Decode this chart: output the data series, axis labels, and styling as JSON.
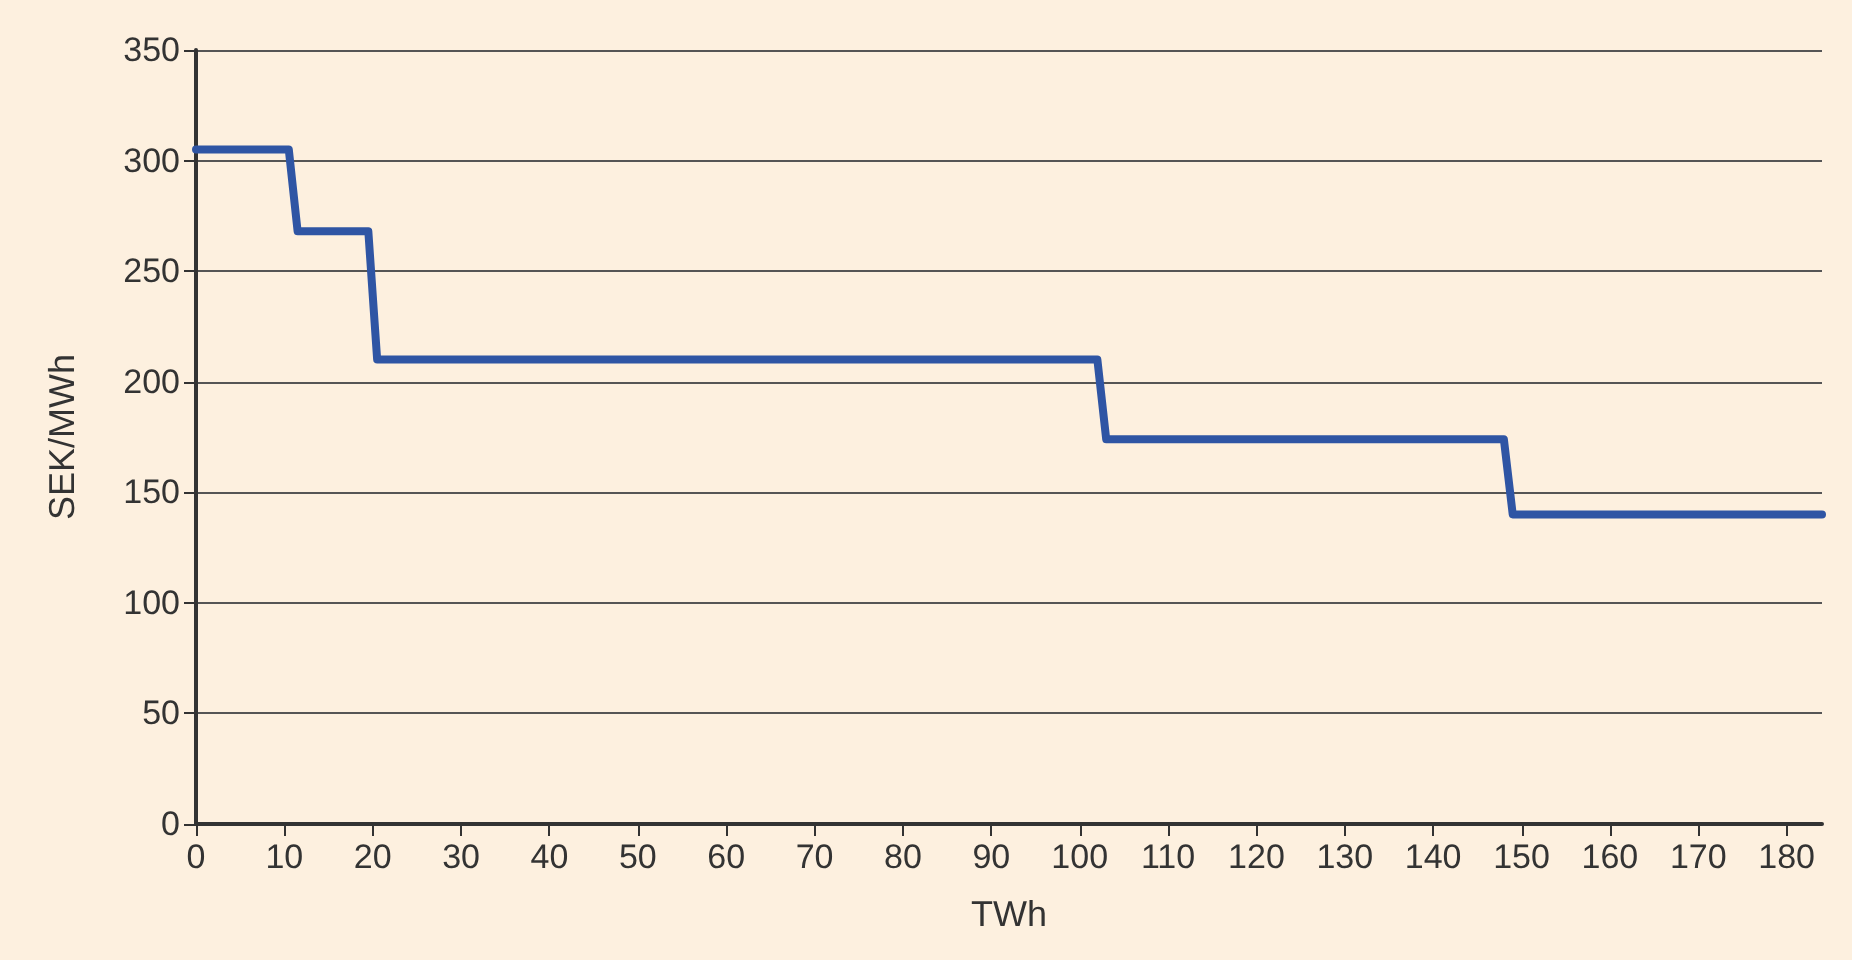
{
  "chart_data": {
    "type": "line",
    "xlabel": "TWh",
    "ylabel": "SEK/MWh",
    "series": [
      {
        "color": "#2f55a4",
        "x": [
          0,
          10.5,
          11.5,
          19.5,
          20.5,
          102,
          103,
          148,
          149,
          184
        ],
        "values": [
          305,
          305,
          268,
          268,
          210,
          210,
          174,
          174,
          140,
          140
        ]
      }
    ],
    "xlim": [
      0,
      184
    ],
    "xticks": [
      0,
      10,
      20,
      30,
      40,
      50,
      60,
      70,
      80,
      90,
      100,
      110,
      120,
      130,
      140,
      150,
      160,
      170,
      180
    ],
    "ylim": [
      0,
      350
    ],
    "yticks": [
      0,
      50,
      100,
      150,
      200,
      250,
      300,
      350
    ],
    "grid": "y",
    "marker": "none",
    "line_style": "solid"
  }
}
